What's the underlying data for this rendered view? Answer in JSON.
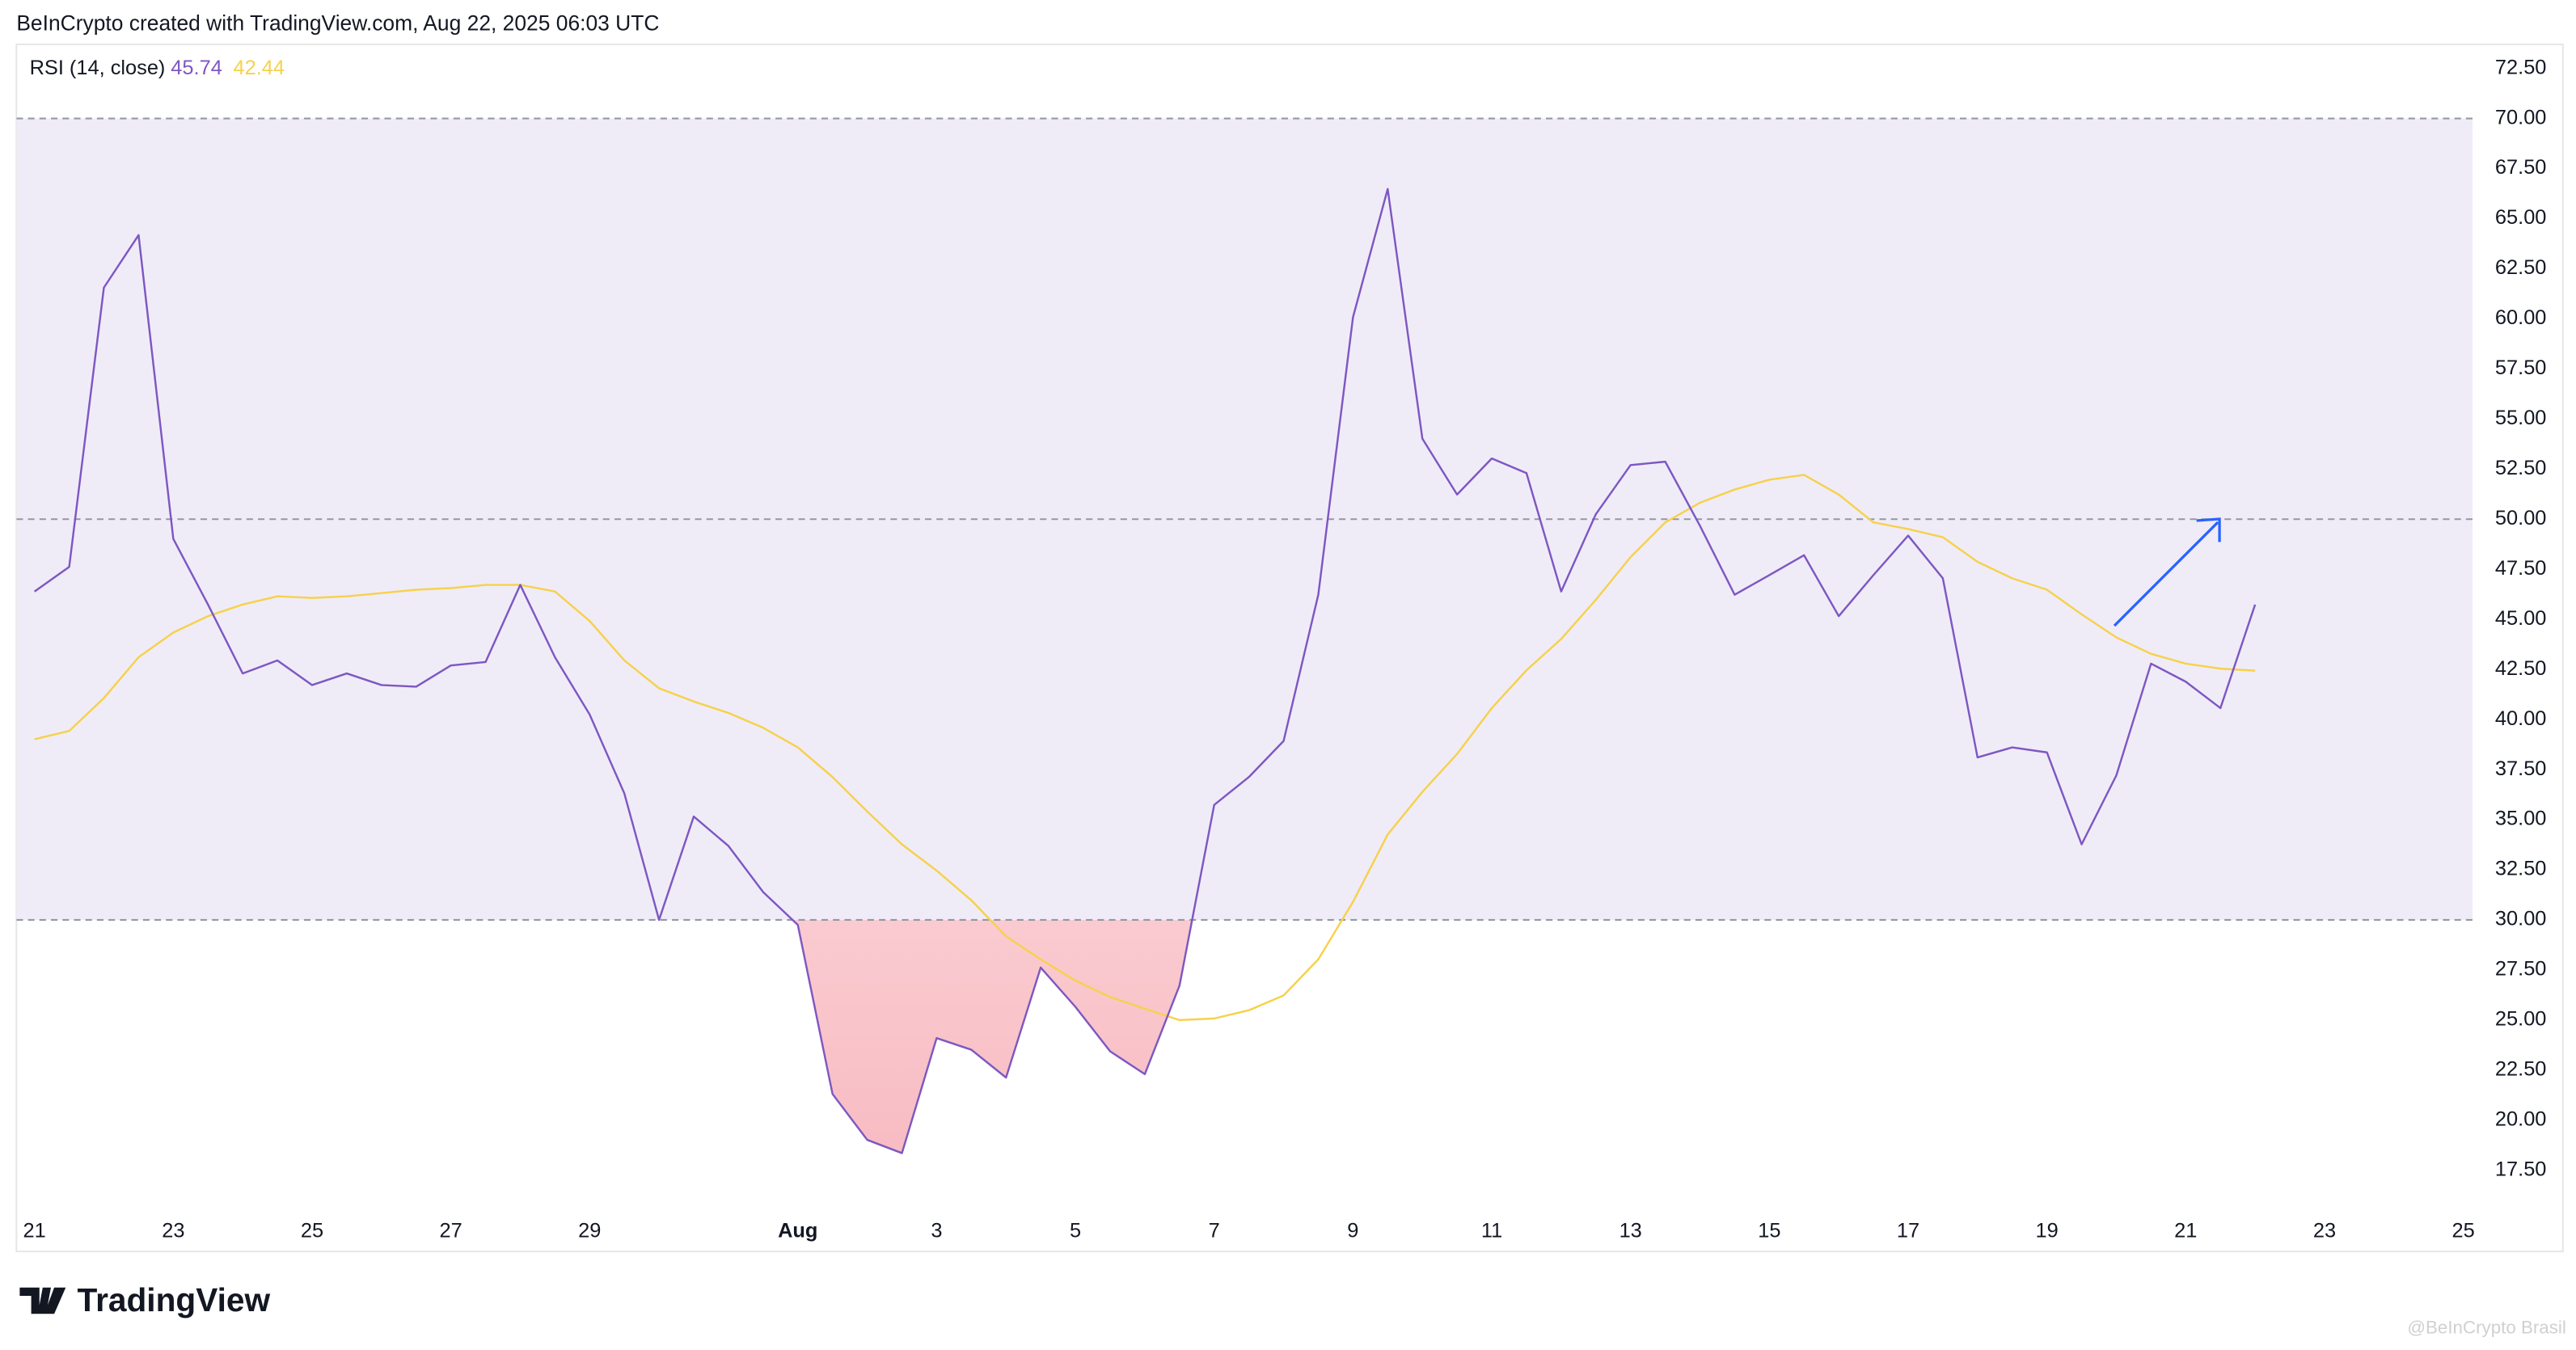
{
  "header": "BeInCrypto created with TradingView.com, Aug 22, 2025 06:03 UTC",
  "logo": "TradingView",
  "watermark": "@BeInCrypto Brasil",
  "chart_data": {
    "type": "line",
    "legend_title": "RSI (14, close)",
    "categories": [
      "21",
      null,
      null,
      null,
      "23",
      null,
      null,
      null,
      "25",
      null,
      null,
      null,
      "27",
      null,
      null,
      null,
      "29",
      null,
      null,
      null,
      null,
      null,
      "Aug",
      null,
      null,
      null,
      "3",
      null,
      null,
      null,
      "5",
      null,
      null,
      null,
      "7",
      null,
      null,
      null,
      "9",
      null,
      null,
      null,
      "11",
      null,
      null,
      null,
      "13",
      null,
      null,
      null,
      "15",
      null,
      null,
      null,
      "17",
      null,
      null,
      null,
      "19",
      null,
      null,
      null,
      "21",
      null,
      null,
      null,
      "23",
      null,
      null,
      null,
      "25"
    ],
    "series": [
      {
        "color": "#7e57c2",
        "legend_value": "45.74",
        "values": [
          46.39,
          47.62,
          61.56,
          64.18,
          49.02,
          45.74,
          42.3,
          42.95,
          41.72,
          42.3,
          41.72,
          41.64,
          42.7,
          42.87,
          46.72,
          43.11,
          40.25,
          36.31,
          30.0,
          35.16,
          33.69,
          31.39,
          29.75,
          21.31,
          19.02,
          18.36,
          24.1,
          23.52,
          22.13,
          27.62,
          25.66,
          23.44,
          22.3,
          26.72,
          35.74,
          37.13,
          38.93,
          46.23,
          60.08,
          66.48,
          54.02,
          51.23,
          53.03,
          52.3,
          46.39,
          50.25,
          52.7,
          52.87,
          49.67,
          46.23,
          47.21,
          48.2,
          45.16,
          47.21,
          49.18,
          47.05,
          38.11,
          38.61,
          38.36,
          33.77,
          37.21,
          42.79,
          41.89,
          40.57,
          45.74,
          null,
          null,
          null,
          null,
          null,
          null
        ]
      },
      {
        "color": "#f7d14a",
        "legend_value": "42.44",
        "values": [
          39.02,
          39.43,
          41.07,
          43.11,
          44.34,
          45.16,
          45.74,
          46.15,
          46.07,
          46.15,
          46.31,
          46.48,
          46.56,
          46.72,
          46.72,
          46.39,
          44.92,
          42.95,
          41.56,
          40.9,
          40.33,
          39.59,
          38.61,
          37.13,
          35.41,
          33.77,
          32.46,
          30.98,
          29.18,
          28.03,
          26.97,
          26.15,
          25.57,
          25.0,
          25.08,
          25.49,
          26.23,
          28.03,
          30.9,
          34.26,
          36.39,
          38.28,
          40.57,
          42.46,
          44.02,
          45.98,
          48.11,
          49.84,
          50.82,
          51.48,
          51.97,
          52.21,
          51.23,
          49.84,
          49.51,
          49.1,
          47.87,
          47.05,
          46.48,
          45.25,
          44.1,
          43.28,
          42.79,
          42.54,
          42.44,
          null,
          null,
          null,
          null,
          null,
          null
        ]
      }
    ],
    "ylim": [
      15.5,
      73.7
    ],
    "yticks": [
      {
        "value": 17.5,
        "label": "17.50"
      },
      {
        "value": 20,
        "label": "20.00"
      },
      {
        "value": 22.5,
        "label": "22.50"
      },
      {
        "value": 25,
        "label": "25.00"
      },
      {
        "value": 27.5,
        "label": "27.50"
      },
      {
        "value": 30,
        "label": "30.00"
      },
      {
        "value": 32.5,
        "label": "32.50"
      },
      {
        "value": 35,
        "label": "35.00"
      },
      {
        "value": 37.5,
        "label": "37.50"
      },
      {
        "value": 40,
        "label": "40.00"
      },
      {
        "value": 42.5,
        "label": "42.50"
      },
      {
        "value": 45,
        "label": "45.00"
      },
      {
        "value": 47.5,
        "label": "47.50"
      },
      {
        "value": 50,
        "label": "50.00"
      },
      {
        "value": 52.5,
        "label": "52.50"
      },
      {
        "value": 55,
        "label": "55.00"
      },
      {
        "value": 57.5,
        "label": "57.50"
      },
      {
        "value": 60,
        "label": "60.00"
      },
      {
        "value": 62.5,
        "label": "62.50"
      },
      {
        "value": 65,
        "label": "65.00"
      },
      {
        "value": 67.5,
        "label": "67.50"
      },
      {
        "value": 70,
        "label": "70.00"
      },
      {
        "value": 72.5,
        "label": "72.50"
      }
    ],
    "band_lines": [
      70,
      50,
      30
    ],
    "band_fill": "#efecf8",
    "oversold_fill": "#f8bcc3"
  }
}
